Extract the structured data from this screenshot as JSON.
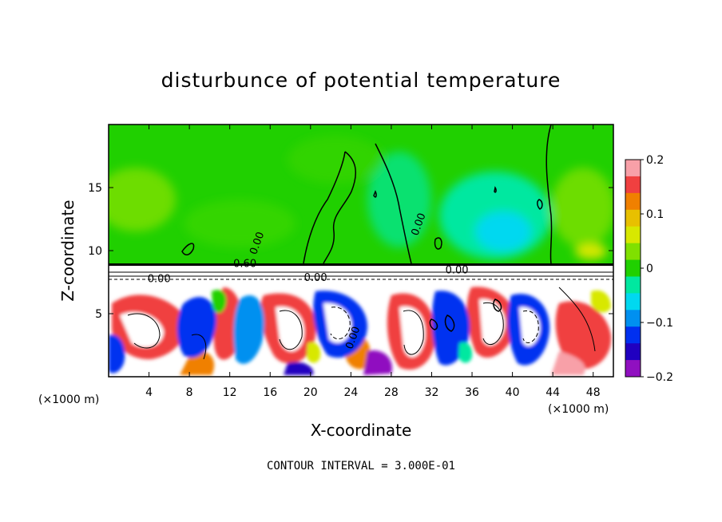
{
  "title": "disturbunce of potential temperature",
  "footer": "CONTOUR INTERVAL = 3.000E-01",
  "chart_data": {
    "type": "heatmap",
    "title": "disturbunce of potential temperature",
    "xlabel": "X-coordinate",
    "ylabel": "Z-coordinate",
    "x_units": "(×1000 m)",
    "y_units": "(×1000 m)",
    "xlim": [
      0,
      50
    ],
    "ylim": [
      0,
      20
    ],
    "x_ticks": [
      4,
      8,
      12,
      16,
      20,
      24,
      28,
      32,
      36,
      40,
      44,
      48
    ],
    "y_ticks": [
      5,
      10,
      15
    ],
    "colorbar": {
      "range": [
        -0.2,
        0.2
      ],
      "ticks": [
        "0.2",
        "0.1",
        "0",
        "−0.1",
        "−0.2"
      ],
      "tick_values": [
        0.2,
        0.1,
        0,
        -0.1,
        -0.2
      ],
      "colors": [
        "#f8a0a8",
        "#f04040",
        "#f08000",
        "#e8c000",
        "#d8e800",
        "#80e000",
        "#20d000",
        "#00e8a0",
        "#00d8f0",
        "#0090f0",
        "#0030f0",
        "#2000c0",
        "#9010c0"
      ]
    },
    "contour_labels": [
      {
        "text": "0.00",
        "x": 15.0,
        "z": 10.5
      },
      {
        "text": "0.00",
        "x": 31.0,
        "z": 12.0
      },
      {
        "text": "0.60",
        "x": 13.5,
        "z": 8.7
      },
      {
        "text": "0.00",
        "x": 5.0,
        "z": 7.5
      },
      {
        "text": "0.00",
        "x": 20.5,
        "z": 7.6
      },
      {
        "text": "0.00",
        "x": 24.5,
        "z": 3.0
      },
      {
        "text": "0.00",
        "x": 34.5,
        "z": 8.2
      }
    ],
    "contour_interval": "3.000E-01"
  }
}
